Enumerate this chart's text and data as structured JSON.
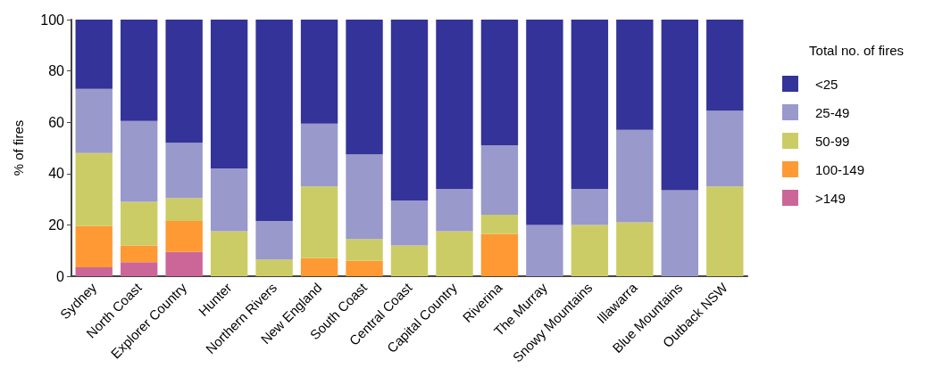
{
  "chart_data": {
    "type": "bar",
    "stacked": true,
    "ylabel": "% of fires",
    "legend_title": "Total no. of fires",
    "legend": "right",
    "grid": false,
    "categories": [
      "Sydney",
      "North Coast",
      "Explorer Country",
      "Hunter",
      "Northern Rivers",
      "New England",
      "South Coast",
      "Central Coast",
      "Capital Country",
      "Riverina",
      "The Murray",
      "Snowy Mountains",
      "Illawarra",
      "Blue Mountains",
      "Outback NSW"
    ],
    "ylim": [
      0,
      100
    ],
    "yticks": [
      0,
      20,
      40,
      60,
      80,
      100
    ],
    "series": [
      {
        "name": ">149",
        "color": "#cc6699",
        "values": [
          3.5,
          5.5,
          9.5,
          0,
          0,
          0,
          0,
          0,
          0,
          0,
          0,
          0,
          0,
          0,
          0
        ]
      },
      {
        "name": "100-149",
        "color": "#ff9933",
        "values": [
          16,
          6.5,
          12,
          0,
          0,
          7,
          6,
          0,
          0,
          16.5,
          0,
          0,
          0,
          0,
          0
        ]
      },
      {
        "name": "50-99",
        "color": "#cccc66",
        "values": [
          28.5,
          17,
          9,
          17.5,
          6.5,
          28,
          8.5,
          12,
          17.5,
          7.5,
          0,
          20,
          21,
          0,
          35
        ]
      },
      {
        "name": "25-49",
        "color": "#9999cc",
        "values": [
          25,
          31.5,
          21.5,
          24.5,
          15,
          24.5,
          33,
          17.5,
          16.5,
          27,
          20,
          14,
          36,
          33.5,
          29.5
        ]
      },
      {
        "name": "<25",
        "color": "#333399",
        "values": [
          27,
          39.5,
          48,
          58,
          78.5,
          40.5,
          52.5,
          70.5,
          66,
          49,
          80,
          66,
          43,
          66.5,
          35.5
        ]
      }
    ]
  }
}
